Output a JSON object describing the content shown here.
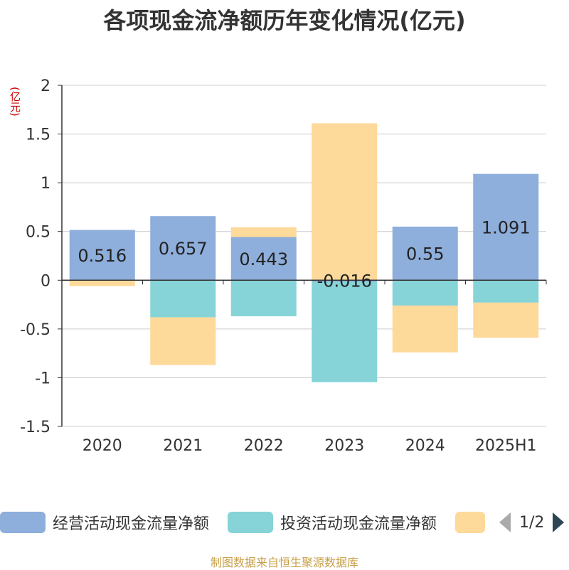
{
  "title": "各项现金流净额历年变化情况(亿元)",
  "unit_label": "(亿元)",
  "source": "制图数据来自恒生聚源数据库",
  "legend": {
    "items": [
      {
        "label": "经营活动现金流量净额",
        "color": "#8eaedb"
      },
      {
        "label": "投资活动现金流量净额",
        "color": "#86d4d8"
      },
      {
        "label": "",
        "color": "#fdd99a"
      }
    ],
    "page": "1/2"
  },
  "chart_data": {
    "type": "bar",
    "stacked": true,
    "categories": [
      "2020",
      "2021",
      "2022",
      "2023",
      "2024",
      "2025H1"
    ],
    "ylim": [
      -1.5,
      2
    ],
    "yticks": [
      -1.5,
      -1,
      -0.5,
      0,
      0.5,
      1,
      1.5,
      2
    ],
    "ytick_labels": [
      "-1.5",
      "-1",
      "-0.5",
      "0",
      "0.5",
      "1",
      "1.5",
      "2"
    ],
    "grid": true,
    "series": [
      {
        "name": "经营活动现金流量净额",
        "color": "#8eaedb",
        "values": [
          0.516,
          0.657,
          0.443,
          -0.016,
          0.55,
          1.091
        ],
        "labels": [
          "0.516",
          "0.657",
          "0.443",
          "-0.016",
          "0.55",
          "1.091"
        ]
      },
      {
        "name": "投资活动现金流量净额",
        "color": "#86d4d8",
        "values": [
          0,
          -0.38,
          -0.37,
          -1.03,
          -0.26,
          -0.23
        ]
      },
      {
        "name": "",
        "color": "#fdd99a",
        "values": [
          -0.06,
          -0.49,
          0.1,
          1.61,
          -0.48,
          -0.36
        ]
      }
    ]
  }
}
